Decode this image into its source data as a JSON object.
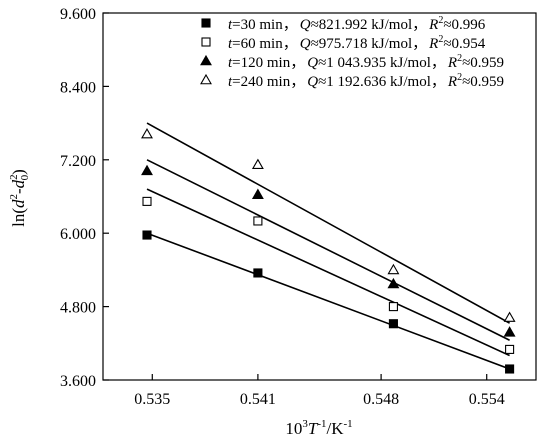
{
  "chart_data": {
    "type": "scatter",
    "xlabel": {
      "base": "10",
      "exp": "3",
      "mid": "T",
      "exp2": "-1",
      "tail": "/K",
      "exp3": "-1"
    },
    "ylabel": {
      "pre": "ln(",
      "d": "d",
      "s1": "2",
      "minus": "-",
      "d0": "d",
      "sub": "0",
      "s2": "2",
      "post": ")"
    },
    "xlim": [
      0.5322,
      0.5568
    ],
    "ylim": [
      3.6,
      9.6
    ],
    "x_ticks": [
      {
        "value": 0.535,
        "label": "0.535"
      },
      {
        "value": 0.541,
        "label": "0.541"
      },
      {
        "value": 0.548,
        "label": "0.548"
      },
      {
        "value": 0.554,
        "label": "0.554"
      }
    ],
    "y_ticks": [
      {
        "value": 3.6,
        "label": "3.600"
      },
      {
        "value": 4.8,
        "label": "4.800"
      },
      {
        "value": 6.0,
        "label": "6.000"
      },
      {
        "value": 7.2,
        "label": "7.200"
      },
      {
        "value": 8.4,
        "label": "8.400"
      },
      {
        "value": 9.6,
        "label": "9.600"
      }
    ],
    "series": [
      {
        "marker": "square-filled",
        "x": [
          0.5347,
          0.541,
          0.5487,
          0.5553
        ],
        "y": [
          5.97,
          5.35,
          4.52,
          3.78
        ],
        "fit_y": [
          6.0,
          3.78
        ],
        "legend": {
          "t": "t",
          "teq": "=30 min，",
          "q": "Q",
          "qeq": "≈821.992 kJ/mol，",
          "r": "R",
          "rsup": "2",
          "req": "≈0.996"
        }
      },
      {
        "marker": "square-open",
        "x": [
          0.5347,
          0.541,
          0.5487,
          0.5553
        ],
        "y": [
          6.52,
          6.2,
          4.8,
          4.1
        ],
        "fit_y": [
          6.72,
          4.0
        ],
        "legend": {
          "t": "t",
          "teq": "=60 min，",
          "q": "Q",
          "qeq": "≈975.718 kJ/mol，",
          "r": "R",
          "rsup": "2",
          "req": "≈0.954"
        }
      },
      {
        "marker": "triangle-filled",
        "x": [
          0.5347,
          0.541,
          0.5487,
          0.5553
        ],
        "y": [
          7.02,
          6.63,
          5.17,
          4.38
        ],
        "fit_y": [
          7.2,
          4.25
        ],
        "legend": {
          "t": "t",
          "teq": "=120 min，",
          "q": "Q",
          "qeq": "≈1 043.935 kJ/mol，",
          "r": "R",
          "rsup": "2",
          "req": "≈0.959"
        }
      },
      {
        "marker": "triangle-open",
        "x": [
          0.5347,
          0.541,
          0.5487,
          0.5553
        ],
        "y": [
          7.62,
          7.12,
          5.4,
          4.62
        ],
        "fit_y": [
          7.8,
          4.53
        ],
        "legend": {
          "t": "t",
          "teq": "=240 min，",
          "q": "Q",
          "qeq": "≈1 192.636 kJ/mol，",
          "r": "R",
          "rsup": "2",
          "req": "≈0.959"
        }
      }
    ],
    "fit_x_range": [
      0.5347,
      0.5553
    ]
  }
}
